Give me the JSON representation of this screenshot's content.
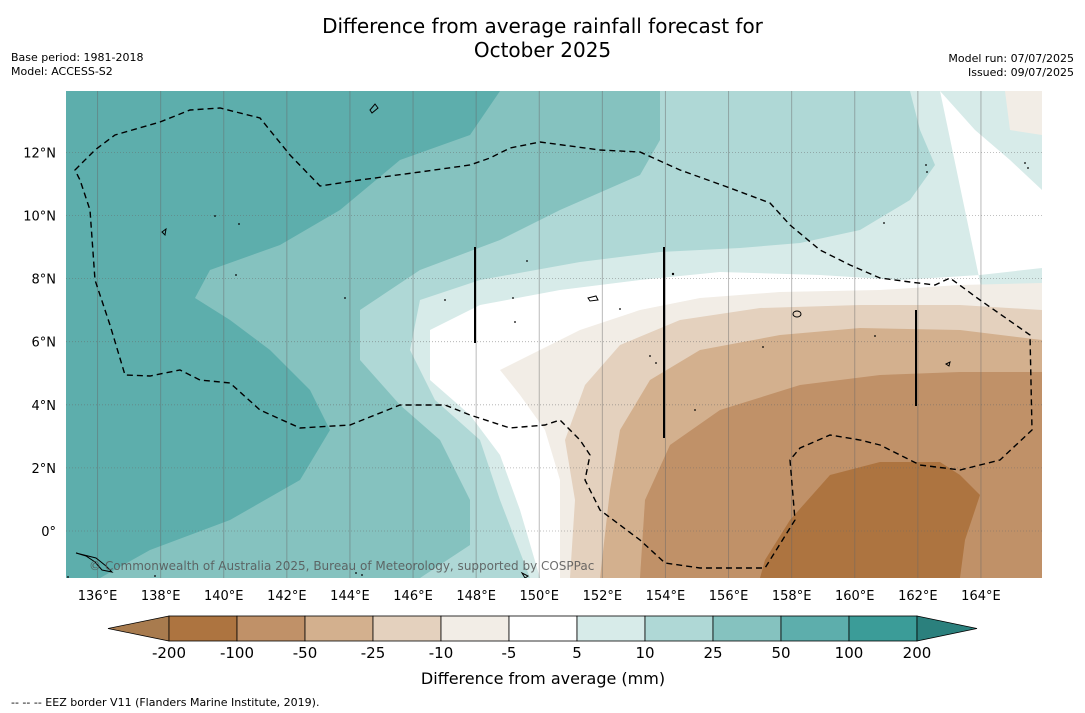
{
  "header": {
    "title_line1": "Difference from average rainfall forecast for",
    "title_line2": "October 2025",
    "base_period": "Base period: 1981-2018",
    "model": "Model: ACCESS-S2",
    "model_run": "Model run: 07/07/2025",
    "issued": "Issued: 09/07/2025"
  },
  "map": {
    "lon_labels": [
      "136°E",
      "138°E",
      "140°E",
      "142°E",
      "144°E",
      "146°E",
      "148°E",
      "150°E",
      "152°E",
      "154°E",
      "156°E",
      "158°E",
      "160°E",
      "162°E",
      "164°E"
    ],
    "lat_labels": [
      "12°N",
      "10°N",
      "8°N",
      "6°N",
      "4°N",
      "2°N",
      "0°"
    ],
    "credit": "© Commonwealth of Australia 2025, Bureau of Meteorology, supported by COSPPac"
  },
  "colorbar": {
    "title": "Difference from average (mm)",
    "ticks": [
      "-200",
      "-100",
      "-50",
      "-25",
      "-10",
      "-5",
      "5",
      "10",
      "25",
      "50",
      "100",
      "200"
    ],
    "colors": [
      "#a87b4e",
      "#ad7440",
      "#c09168",
      "#d3b08e",
      "#e4d1be",
      "#f2ede6",
      "#ffffff",
      "#d7ebe9",
      "#afd8d6",
      "#85c2bf",
      "#5daeac",
      "#3b9c98",
      "#2b807d"
    ]
  },
  "footnote": "--  --  -- EEZ border V11 (Flanders Marine Institute, 2019)."
}
